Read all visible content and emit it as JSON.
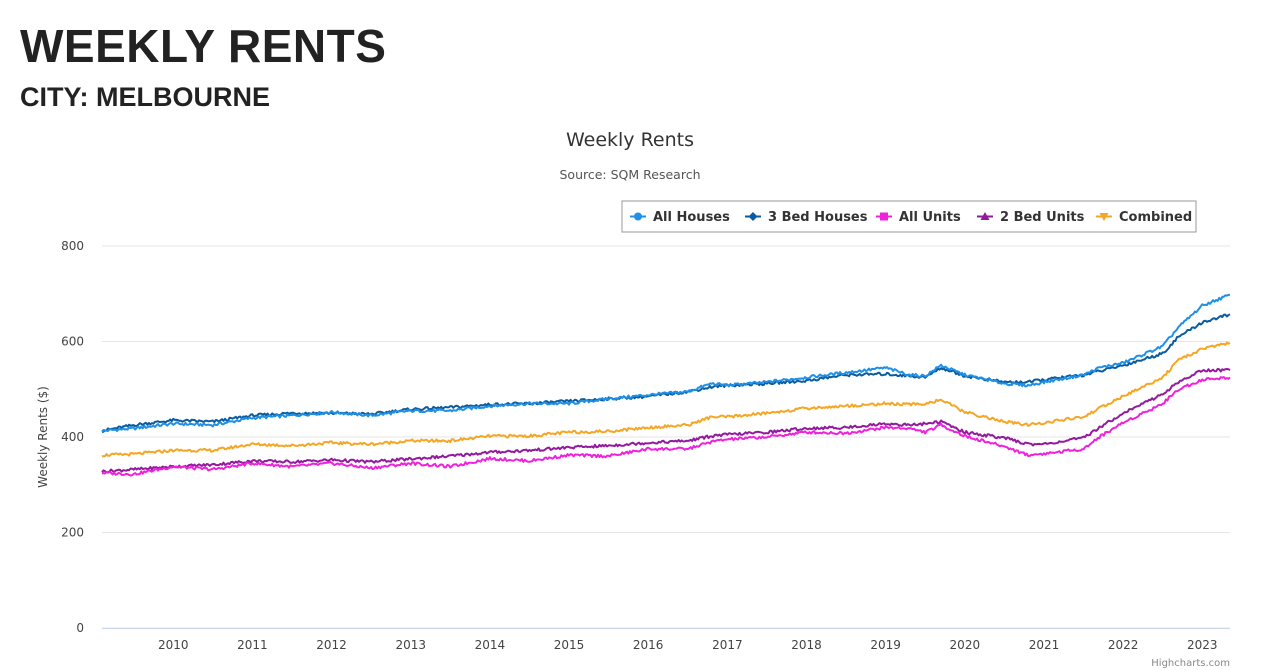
{
  "page": {
    "heading": "WEEKLY RENTS",
    "subheading": "CITY: MELBOURNE"
  },
  "chart_data": {
    "type": "line",
    "title": "Weekly Rents",
    "subtitle": "Source: SQM Research",
    "xlabel": "",
    "ylabel": "Weekly Rents ($)",
    "xlim": [
      2009.6,
      2023.85
    ],
    "ylim": [
      0,
      800
    ],
    "x_ticks": [
      "2010",
      "2011",
      "2012",
      "2013",
      "2014",
      "2015",
      "2016",
      "2017",
      "2018",
      "2019",
      "2020",
      "2021",
      "2022",
      "2023"
    ],
    "y_ticks": [
      "0",
      "200",
      "400",
      "600",
      "800"
    ],
    "grid": true,
    "legend_position": "top-right",
    "credits": "Highcharts.com",
    "series": [
      {
        "name": "All Houses",
        "color": "#1e90e8",
        "marker": "circle",
        "x": [
          2009.6,
          2010.0,
          2010.5,
          2011.0,
          2011.5,
          2012.0,
          2012.5,
          2013.0,
          2013.5,
          2014.0,
          2014.5,
          2015.0,
          2015.5,
          2016.0,
          2016.5,
          2017.0,
          2017.3,
          2017.5,
          2018.0,
          2018.5,
          2019.0,
          2019.5,
          2019.8,
          2020.0,
          2020.2,
          2020.5,
          2021.0,
          2021.3,
          2021.5,
          2022.0,
          2022.2,
          2022.5,
          2023.0,
          2023.2,
          2023.5,
          2023.85
        ],
        "y": [
          413,
          418,
          428,
          425,
          440,
          445,
          452,
          445,
          455,
          455,
          465,
          470,
          470,
          480,
          488,
          495,
          512,
          508,
          515,
          525,
          535,
          545,
          530,
          528,
          550,
          530,
          512,
          508,
          515,
          530,
          545,
          555,
          590,
          630,
          675,
          698
        ]
      },
      {
        "name": "3 Bed Houses",
        "color": "#0b5c9e",
        "marker": "diamond",
        "x": [
          2009.6,
          2010.0,
          2010.5,
          2011.0,
          2011.5,
          2012.0,
          2012.5,
          2013.0,
          2013.5,
          2014.0,
          2014.5,
          2015.0,
          2015.5,
          2016.0,
          2016.5,
          2017.0,
          2017.3,
          2017.5,
          2018.0,
          2018.5,
          2019.0,
          2019.5,
          2019.8,
          2020.0,
          2020.2,
          2020.5,
          2021.0,
          2021.3,
          2021.5,
          2022.0,
          2022.2,
          2022.5,
          2023.0,
          2023.2,
          2023.5,
          2023.85
        ],
        "y": [
          413,
          425,
          435,
          432,
          445,
          450,
          450,
          448,
          458,
          462,
          468,
          470,
          475,
          480,
          485,
          495,
          505,
          508,
          512,
          518,
          530,
          532,
          528,
          525,
          545,
          528,
          515,
          515,
          520,
          530,
          538,
          550,
          575,
          610,
          640,
          657
        ]
      },
      {
        "name": "All Units",
        "color": "#ee22dd",
        "marker": "square",
        "x": [
          2009.6,
          2010.0,
          2010.5,
          2011.0,
          2011.5,
          2012.0,
          2012.5,
          2013.0,
          2013.5,
          2014.0,
          2014.5,
          2015.0,
          2015.5,
          2016.0,
          2016.5,
          2017.0,
          2017.3,
          2017.5,
          2018.0,
          2018.5,
          2019.0,
          2019.5,
          2019.8,
          2020.0,
          2020.2,
          2020.5,
          2021.0,
          2021.3,
          2021.5,
          2022.0,
          2022.2,
          2022.5,
          2023.0,
          2023.2,
          2023.5,
          2023.85
        ],
        "y": [
          325,
          322,
          338,
          332,
          345,
          338,
          345,
          335,
          345,
          338,
          355,
          350,
          362,
          360,
          375,
          375,
          390,
          395,
          400,
          410,
          408,
          420,
          418,
          410,
          425,
          402,
          380,
          362,
          365,
          375,
          400,
          430,
          470,
          500,
          520,
          525
        ]
      },
      {
        "name": "2 Bed Units",
        "color": "#931a9e",
        "marker": "triangle",
        "x": [
          2009.6,
          2010.0,
          2010.5,
          2011.0,
          2011.5,
          2012.0,
          2012.5,
          2013.0,
          2013.5,
          2014.0,
          2014.5,
          2015.0,
          2015.5,
          2016.0,
          2016.5,
          2017.0,
          2017.3,
          2017.5,
          2018.0,
          2018.5,
          2019.0,
          2019.5,
          2019.8,
          2020.0,
          2020.2,
          2020.5,
          2021.0,
          2021.3,
          2021.5,
          2022.0,
          2022.2,
          2022.5,
          2023.0,
          2023.2,
          2023.5,
          2023.85
        ],
        "y": [
          328,
          332,
          338,
          342,
          350,
          348,
          352,
          348,
          354,
          360,
          368,
          372,
          378,
          382,
          388,
          392,
          402,
          405,
          410,
          418,
          420,
          428,
          425,
          428,
          432,
          410,
          398,
          385,
          385,
          398,
          420,
          450,
          490,
          515,
          540,
          540
        ]
      },
      {
        "name": "Combined",
        "color": "#f5a623",
        "marker": "triangle-down",
        "x": [
          2009.6,
          2010.0,
          2010.5,
          2011.0,
          2011.5,
          2012.0,
          2012.5,
          2013.0,
          2013.5,
          2014.0,
          2014.5,
          2015.0,
          2015.5,
          2016.0,
          2016.5,
          2017.0,
          2017.3,
          2017.5,
          2018.0,
          2018.5,
          2019.0,
          2019.5,
          2019.8,
          2020.0,
          2020.2,
          2020.5,
          2021.0,
          2021.3,
          2021.5,
          2022.0,
          2022.2,
          2022.5,
          2023.0,
          2023.2,
          2023.5,
          2023.85
        ],
        "y": [
          362,
          364,
          372,
          372,
          385,
          382,
          388,
          385,
          392,
          392,
          402,
          402,
          410,
          412,
          420,
          425,
          442,
          442,
          450,
          460,
          465,
          470,
          468,
          470,
          478,
          452,
          432,
          425,
          430,
          442,
          460,
          485,
          525,
          560,
          585,
          597
        ]
      }
    ]
  }
}
